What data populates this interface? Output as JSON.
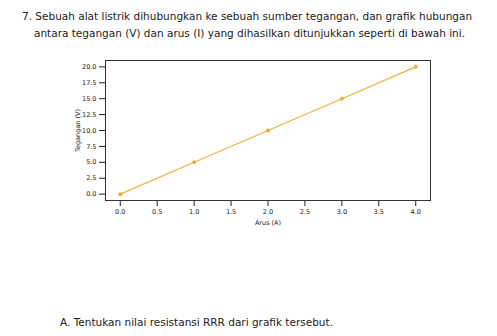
{
  "question": [
    "7. Sebuah alat listrik dihubungkan ke sebuah sumber tegangan, dan grafik hubungan",
    "antara tegangan (V) dan arus (I) yang dihasilkan ditunjukkan seperti di bawah ini."
  ],
  "sub_question": "A. Tentukan nilai resistansi RRR dari grafik tersebut.",
  "chart_data": {
    "type": "line",
    "x_label": "Arus (A)",
    "y_label": "Tegangan (V)",
    "x": [
      0,
      1,
      2,
      3,
      4
    ],
    "series": [
      {
        "name": "Tegangan",
        "color": "#f0b03f",
        "marker": "circle",
        "values": [
          0,
          5,
          10,
          15,
          20
        ]
      }
    ],
    "xlim": [
      -0.2,
      4.2
    ],
    "xticks": [
      {
        "value": 0,
        "label": "0.0"
      },
      {
        "value": 0.5,
        "label": "0.5"
      },
      {
        "value": 1,
        "label": "1.0"
      },
      {
        "value": 1.5,
        "label": "1.5"
      },
      {
        "value": 2,
        "label": "2.0"
      },
      {
        "value": 2.5,
        "label": "2.5"
      },
      {
        "value": 3,
        "label": "3.0"
      },
      {
        "value": 3.5,
        "label": "3.5"
      },
      {
        "value": 4,
        "label": "4.0"
      }
    ],
    "ylim": [
      -1,
      21
    ],
    "yticks": [
      {
        "value": 0,
        "label": "0.0"
      },
      {
        "value": 2.5,
        "label": "2.5"
      },
      {
        "value": 5,
        "label": "5.0"
      },
      {
        "value": 7.5,
        "label": "7.5"
      },
      {
        "value": 10,
        "label": "10.0"
      },
      {
        "value": 12.5,
        "label": "12.5"
      },
      {
        "value": 15,
        "label": "15.0"
      },
      {
        "value": 17.5,
        "label": "17.5"
      },
      {
        "value": 20,
        "label": "20.0"
      }
    ],
    "grid": false
  }
}
